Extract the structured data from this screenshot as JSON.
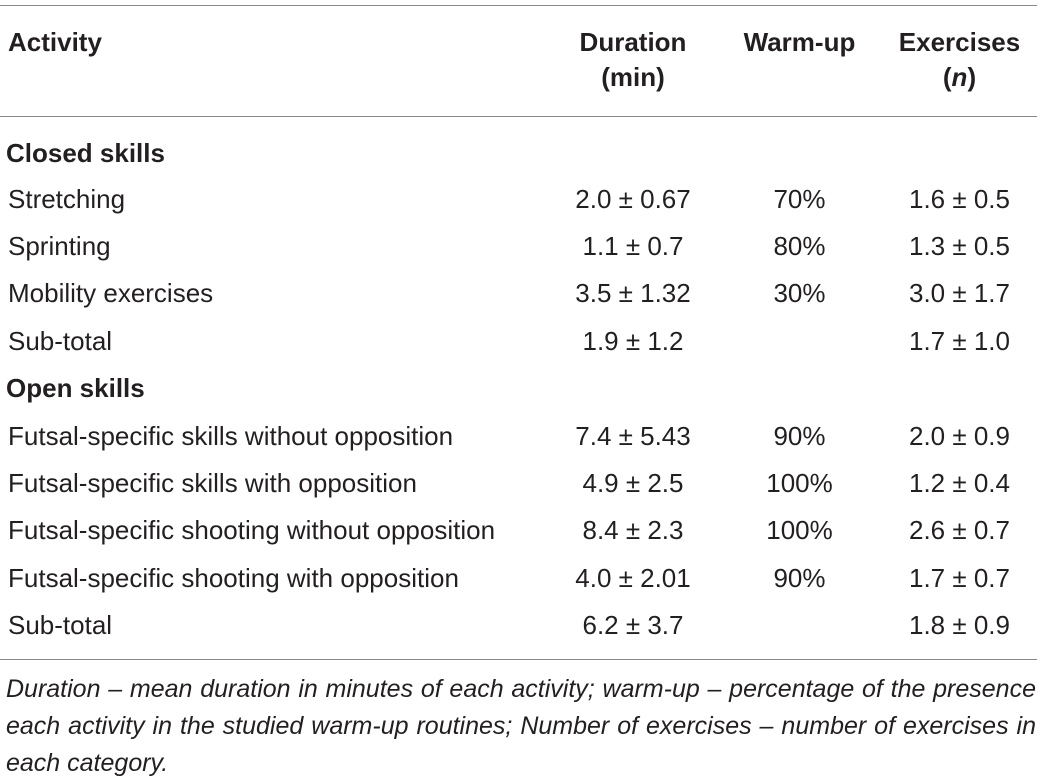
{
  "header": {
    "activity": "Activity",
    "duration": [
      "Duration",
      "(min)"
    ],
    "warmup": "Warm-up",
    "exercises": [
      "Exercises",
      "(n)"
    ]
  },
  "sections": [
    {
      "title": "Closed skills",
      "rows": [
        {
          "activity": "Stretching",
          "duration": "2.0 ± 0.67",
          "warmup": "70%",
          "exercises": "1.6 ± 0.5"
        },
        {
          "activity": "Sprinting",
          "duration": "1.1 ± 0.7",
          "warmup": "80%",
          "exercises": "1.3 ± 0.5"
        },
        {
          "activity": "Mobility exercises",
          "duration": "3.5 ± 1.32",
          "warmup": "30%",
          "exercises": "3.0 ± 1.7"
        },
        {
          "activity": "Sub-total",
          "duration": "1.9 ± 1.2",
          "warmup": "",
          "exercises": "1.7 ± 1.0"
        }
      ]
    },
    {
      "title": "Open skills",
      "rows": [
        {
          "activity": "Futsal-specific skills without opposition",
          "duration": "7.4 ± 5.43",
          "warmup": "90%",
          "exercises": "2.0 ± 0.9"
        },
        {
          "activity": "Futsal-specific skills with opposition",
          "duration": "4.9 ± 2.5",
          "warmup": "100%",
          "exercises": "1.2 ± 0.4"
        },
        {
          "activity": "Futsal-specific shooting without opposition",
          "duration": "8.4 ± 2.3",
          "warmup": "100%",
          "exercises": "2.6 ± 0.7"
        },
        {
          "activity": "Futsal-specific shooting with opposition",
          "duration": "4.0 ± 2.01",
          "warmup": "90%",
          "exercises": "1.7 ± 0.7"
        },
        {
          "activity": "Sub-total",
          "duration": "6.2 ± 3.7",
          "warmup": "",
          "exercises": "1.8 ± 0.9"
        }
      ]
    }
  ],
  "footnote": "Duration – mean duration in minutes of each activity; warm-up – percentage of the presence each activity in the studied warm-up routines; Number of exercises – number of exercises in each category."
}
